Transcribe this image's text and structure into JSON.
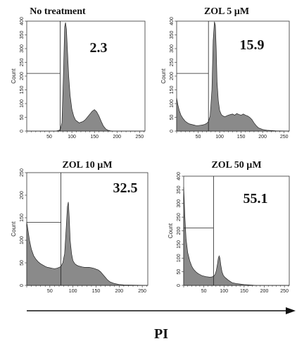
{
  "chart_data": [
    {
      "type": "area",
      "title": "No treatment",
      "subpop_label": "2.3",
      "ylabel": "Count",
      "xlim": [
        0,
        262
      ],
      "ylim": [
        0,
        400
      ],
      "xticks": [
        "50",
        "100",
        "150",
        "200",
        "250"
      ],
      "yticks": [
        "0",
        "50",
        "100",
        "150",
        "200",
        "250",
        "300",
        "350",
        "400"
      ],
      "gate_x": 74,
      "marker_y": 210,
      "x": [
        0,
        10,
        20,
        30,
        40,
        50,
        60,
        65,
        70,
        74,
        78,
        81,
        84,
        86,
        88,
        90,
        93,
        96,
        100,
        104,
        108,
        112,
        116,
        120,
        125,
        130,
        135,
        140,
        145,
        150,
        155,
        160,
        165,
        170,
        175,
        180,
        185,
        190,
        200,
        210,
        220,
        230,
        240,
        250,
        262
      ],
      "y": [
        0,
        0,
        0,
        0,
        0,
        0,
        0,
        0,
        2,
        5,
        30,
        180,
        380,
        395,
        370,
        300,
        200,
        130,
        80,
        55,
        40,
        35,
        30,
        32,
        35,
        42,
        52,
        62,
        72,
        78,
        70,
        55,
        35,
        18,
        8,
        3,
        1,
        0,
        0,
        0,
        0,
        0,
        0,
        0,
        0
      ]
    },
    {
      "type": "area",
      "title": "ZOL 5 µM",
      "subpop_label": "15.9",
      "ylabel": "Count",
      "xlim": [
        0,
        262
      ],
      "ylim": [
        0,
        400
      ],
      "xticks": [
        "50",
        "100",
        "150",
        "200",
        "250"
      ],
      "yticks": [
        "0",
        "50",
        "100",
        "150",
        "200",
        "250",
        "300",
        "350",
        "400"
      ],
      "gate_x": 74,
      "marker_y": 210,
      "x": [
        0,
        3,
        6,
        10,
        15,
        20,
        25,
        30,
        35,
        40,
        45,
        50,
        55,
        60,
        65,
        70,
        74,
        78,
        82,
        85,
        88,
        90,
        92,
        94,
        97,
        100,
        104,
        108,
        112,
        116,
        120,
        125,
        130,
        135,
        140,
        145,
        150,
        155,
        160,
        165,
        170,
        175,
        180,
        185,
        190,
        200,
        210,
        230,
        262
      ],
      "y": [
        120,
        95,
        75,
        58,
        45,
        36,
        30,
        26,
        24,
        22,
        20,
        20,
        21,
        22,
        24,
        28,
        35,
        55,
        150,
        330,
        398,
        385,
        300,
        180,
        110,
        75,
        60,
        55,
        52,
        55,
        58,
        60,
        62,
        58,
        64,
        60,
        58,
        62,
        58,
        55,
        50,
        42,
        30,
        20,
        12,
        6,
        3,
        1,
        0
      ]
    },
    {
      "type": "area",
      "title": "ZOL 10 µM",
      "subpop_label": "32.5",
      "ylabel": "Count",
      "xlim": [
        0,
        262
      ],
      "ylim": [
        0,
        250
      ],
      "xticks": [
        "50",
        "100",
        "150",
        "200",
        "250"
      ],
      "yticks": [
        "0",
        "50",
        "100",
        "150",
        "200",
        "250"
      ],
      "gate_x": 74,
      "marker_y": 140,
      "x": [
        0,
        3,
        6,
        10,
        15,
        20,
        25,
        30,
        35,
        40,
        45,
        50,
        55,
        60,
        65,
        70,
        74,
        78,
        82,
        85,
        88,
        90,
        92,
        94,
        97,
        100,
        104,
        108,
        112,
        116,
        120,
        125,
        130,
        135,
        140,
        145,
        150,
        155,
        160,
        165,
        170,
        175,
        180,
        190,
        200,
        210,
        262
      ],
      "y": [
        140,
        120,
        100,
        80,
        66,
        58,
        52,
        48,
        45,
        42,
        40,
        39,
        38,
        37,
        38,
        40,
        42,
        50,
        70,
        120,
        175,
        185,
        150,
        100,
        70,
        55,
        48,
        45,
        43,
        42,
        41,
        40,
        40,
        40,
        39,
        38,
        36,
        34,
        30,
        24,
        18,
        12,
        8,
        4,
        2,
        1,
        0
      ]
    },
    {
      "type": "area",
      "title": "ZOL 50 µM",
      "subpop_label": "55.1",
      "ylabel": "Count",
      "xlim": [
        0,
        262
      ],
      "ylim": [
        0,
        400
      ],
      "xticks": [
        "50",
        "100",
        "150",
        "200",
        "250"
      ],
      "yticks": [
        "0",
        "50",
        "100",
        "150",
        "200",
        "250",
        "300",
        "350",
        "400"
      ],
      "gate_x": 74,
      "marker_y": 210,
      "x": [
        0,
        3,
        6,
        10,
        15,
        20,
        25,
        30,
        35,
        40,
        45,
        50,
        55,
        60,
        65,
        70,
        74,
        78,
        81,
        84,
        86,
        88,
        90,
        92,
        95,
        98,
        102,
        106,
        110,
        115,
        120,
        130,
        140,
        150,
        160,
        170,
        180,
        200,
        262
      ],
      "y": [
        360,
        250,
        170,
        120,
        90,
        70,
        58,
        50,
        44,
        40,
        36,
        34,
        32,
        31,
        30,
        31,
        33,
        40,
        55,
        80,
        100,
        108,
        100,
        75,
        50,
        38,
        30,
        25,
        20,
        15,
        10,
        7,
        5,
        3,
        2,
        1,
        0,
        0,
        0
      ]
    }
  ],
  "xaxis_label": "PI"
}
